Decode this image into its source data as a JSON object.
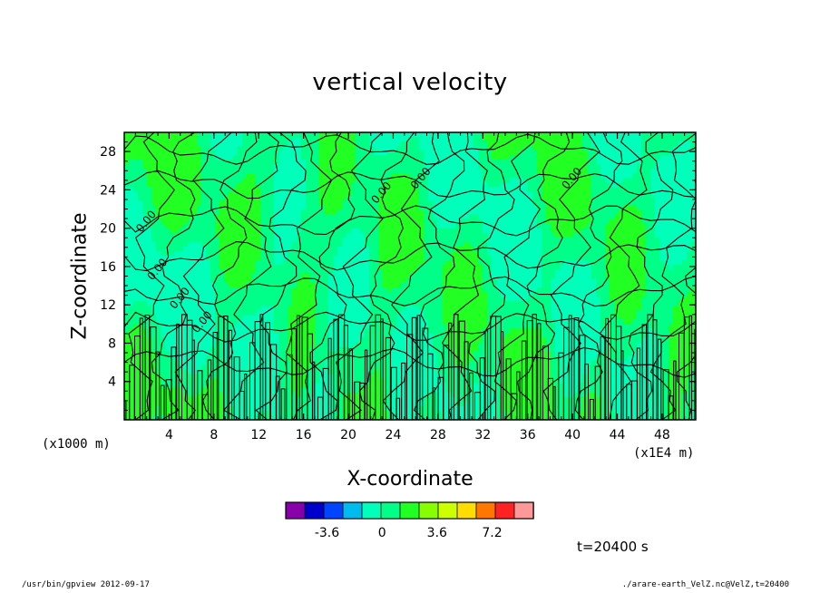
{
  "chart_data": {
    "type": "heatmap",
    "title": "vertical velocity",
    "xlabel": "X-coordinate",
    "ylabel": "Z-coordinate",
    "x_unit_label": "(x1E4 m)",
    "y_unit_label": "(x1000 m)",
    "xlim": [
      0,
      51
    ],
    "ylim": [
      0,
      30
    ],
    "x_ticks": [
      4,
      8,
      12,
      16,
      20,
      24,
      28,
      32,
      36,
      40,
      44,
      48
    ],
    "y_ticks": [
      4,
      8,
      12,
      16,
      20,
      24,
      28
    ],
    "contour_labels": [
      {
        "x": 1.5,
        "y": 19.5,
        "text": "0.00"
      },
      {
        "x": 2.5,
        "y": 14.5,
        "text": "0.00"
      },
      {
        "x": 4.5,
        "y": 11.5,
        "text": "0.00"
      },
      {
        "x": 6.5,
        "y": 9,
        "text": "0.00"
      },
      {
        "x": 22.5,
        "y": 22.5,
        "text": "0.00"
      },
      {
        "x": 26,
        "y": 24,
        "text": "0.00"
      },
      {
        "x": 39.5,
        "y": 24,
        "text": "0.00"
      }
    ],
    "colorbar": {
      "colors": [
        "#8800aa",
        "#0000cc",
        "#0044ff",
        "#00bbee",
        "#00ffbb",
        "#00ff88",
        "#22ff22",
        "#88ff00",
        "#ccff00",
        "#ffdd00",
        "#ff7700",
        "#ff2222",
        "#ff9999"
      ],
      "tick_labels": [
        "-3.6",
        "0",
        "3.6",
        "7.2"
      ],
      "tick_values": [
        -3.6,
        0,
        3.6,
        7.2
      ],
      "range": [
        -6.3,
        9.9
      ]
    }
  },
  "time_label": "t=20400 s",
  "footer": {
    "left": "/usr/bin/gpview  2012-09-17",
    "right": "./arare-earth_VelZ.nc@VelZ,t=20400"
  }
}
